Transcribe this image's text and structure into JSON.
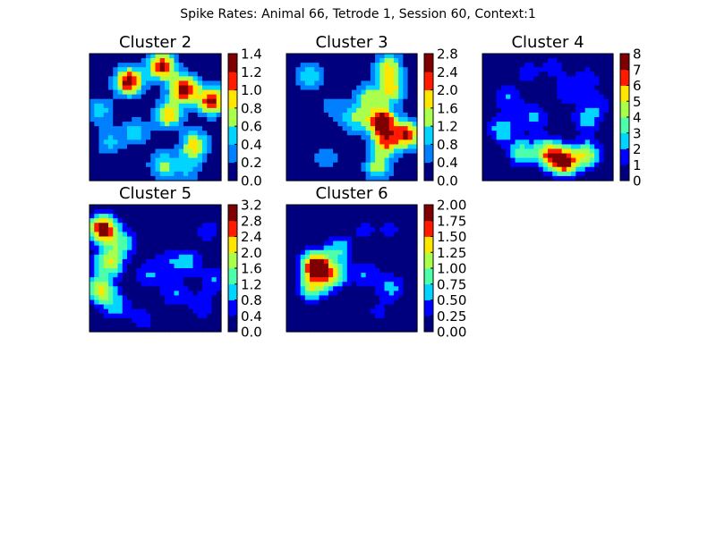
{
  "figure": {
    "suptitle": "Spike Rates: Animal 66, Tetrode 1, Session 60, Context:1"
  },
  "colormap": [
    "#00007f",
    "#0000ff",
    "#007fff",
    "#00d4ff",
    "#4dffaa",
    "#aaff4d",
    "#ffe600",
    "#ff7f00",
    "#ff1a00",
    "#7f0000"
  ],
  "chart_data": [
    {
      "type": "heatmap",
      "title": "Cluster 2",
      "colorbar": {
        "vmin": 0.0,
        "vmax": 1.4,
        "ticks": [
          "0.0",
          "0.2",
          "0.4",
          "0.6",
          "0.8",
          "1.0",
          "1.2",
          "1.4"
        ]
      },
      "hotspots": [
        {
          "x": 0.3,
          "y": 0.22,
          "rate": 1.35
        },
        {
          "x": 0.55,
          "y": 0.1,
          "rate": 1.25
        },
        {
          "x": 0.72,
          "y": 0.28,
          "rate": 1.3
        },
        {
          "x": 0.93,
          "y": 0.37,
          "rate": 1.25
        },
        {
          "x": 0.6,
          "y": 0.48,
          "rate": 0.95
        },
        {
          "x": 0.8,
          "y": 0.72,
          "rate": 0.9
        },
        {
          "x": 0.35,
          "y": 0.62,
          "rate": 0.5
        },
        {
          "x": 0.56,
          "y": 0.88,
          "rate": 0.65
        },
        {
          "x": 0.15,
          "y": 0.7,
          "rate": 0.45
        },
        {
          "x": 0.08,
          "y": 0.45,
          "rate": 0.5
        },
        {
          "x": 0.75,
          "y": 0.9,
          "rate": 0.45
        }
      ]
    },
    {
      "type": "heatmap",
      "title": "Cluster 3",
      "colorbar": {
        "vmin": 0.0,
        "vmax": 2.8,
        "ticks": [
          "0.0",
          "0.4",
          "0.8",
          "1.2",
          "1.6",
          "2.0",
          "2.4",
          "2.8"
        ]
      },
      "hotspots": [
        {
          "x": 0.73,
          "y": 0.53,
          "rate": 2.8
        },
        {
          "x": 0.92,
          "y": 0.64,
          "rate": 2.3
        },
        {
          "x": 0.75,
          "y": 0.7,
          "rate": 1.9
        },
        {
          "x": 0.8,
          "y": 0.28,
          "rate": 1.75
        },
        {
          "x": 0.78,
          "y": 0.1,
          "rate": 1.6
        },
        {
          "x": 0.62,
          "y": 0.35,
          "rate": 1.3
        },
        {
          "x": 0.18,
          "y": 0.18,
          "rate": 1.2
        },
        {
          "x": 0.52,
          "y": 0.52,
          "rate": 1.2
        },
        {
          "x": 0.7,
          "y": 0.9,
          "rate": 1.4
        },
        {
          "x": 0.35,
          "y": 0.42,
          "rate": 0.6
        },
        {
          "x": 0.3,
          "y": 0.82,
          "rate": 0.7
        }
      ]
    },
    {
      "type": "heatmap",
      "title": "Cluster 4",
      "colorbar": {
        "vmin": 0,
        "vmax": 8,
        "ticks": [
          "0",
          "1",
          "2",
          "3",
          "4",
          "5",
          "6",
          "7",
          "8"
        ]
      },
      "hotspots": [
        {
          "x": 0.62,
          "y": 0.85,
          "rate": 7.8
        },
        {
          "x": 0.5,
          "y": 0.78,
          "rate": 5.2
        },
        {
          "x": 0.8,
          "y": 0.8,
          "rate": 4.5
        },
        {
          "x": 0.3,
          "y": 0.78,
          "rate": 3.4
        },
        {
          "x": 0.15,
          "y": 0.6,
          "rate": 2.8
        },
        {
          "x": 0.8,
          "y": 0.52,
          "rate": 2.6
        },
        {
          "x": 0.4,
          "y": 0.5,
          "rate": 2.2
        },
        {
          "x": 0.2,
          "y": 0.35,
          "rate": 2.0
        },
        {
          "x": 0.65,
          "y": 0.3,
          "rate": 1.8
        },
        {
          "x": 0.8,
          "y": 0.2,
          "rate": 1.6
        },
        {
          "x": 0.35,
          "y": 0.15,
          "rate": 1.4
        },
        {
          "x": 0.55,
          "y": 0.1,
          "rate": 1.3
        },
        {
          "x": 0.9,
          "y": 0.4,
          "rate": 1.4
        }
      ]
    },
    {
      "type": "heatmap",
      "title": "Cluster 5",
      "colorbar": {
        "vmin": 0.0,
        "vmax": 3.2,
        "ticks": [
          "0.0",
          "0.4",
          "0.8",
          "1.2",
          "1.6",
          "2.0",
          "2.4",
          "2.8",
          "3.2"
        ]
      },
      "hotspots": [
        {
          "x": 0.1,
          "y": 0.19,
          "rate": 3.15
        },
        {
          "x": 0.15,
          "y": 0.45,
          "rate": 2.0
        },
        {
          "x": 0.08,
          "y": 0.67,
          "rate": 2.0
        },
        {
          "x": 0.25,
          "y": 0.3,
          "rate": 1.2
        },
        {
          "x": 0.2,
          "y": 0.8,
          "rate": 1.0
        },
        {
          "x": 0.45,
          "y": 0.55,
          "rate": 0.8
        },
        {
          "x": 0.6,
          "y": 0.45,
          "rate": 0.6
        },
        {
          "x": 0.75,
          "y": 0.45,
          "rate": 0.9
        },
        {
          "x": 0.65,
          "y": 0.7,
          "rate": 0.8
        },
        {
          "x": 0.85,
          "y": 0.8,
          "rate": 0.7
        },
        {
          "x": 0.95,
          "y": 0.6,
          "rate": 0.8
        },
        {
          "x": 0.9,
          "y": 0.2,
          "rate": 0.6
        },
        {
          "x": 0.4,
          "y": 0.9,
          "rate": 0.6
        }
      ]
    },
    {
      "type": "heatmap",
      "title": "Cluster 6",
      "colorbar": {
        "vmin": 0.0,
        "vmax": 2.0,
        "ticks": [
          "0.00",
          "0.25",
          "0.50",
          "0.75",
          "1.00",
          "1.25",
          "1.50",
          "1.75",
          "2.00"
        ]
      },
      "hotspots": [
        {
          "x": 0.22,
          "y": 0.48,
          "rate": 1.95
        },
        {
          "x": 0.35,
          "y": 0.55,
          "rate": 1.2
        },
        {
          "x": 0.2,
          "y": 0.65,
          "rate": 1.1
        },
        {
          "x": 0.4,
          "y": 0.35,
          "rate": 0.7
        },
        {
          "x": 0.6,
          "y": 0.55,
          "rate": 0.5
        },
        {
          "x": 0.8,
          "y": 0.65,
          "rate": 0.6
        },
        {
          "x": 0.6,
          "y": 0.2,
          "rate": 0.3
        },
        {
          "x": 0.8,
          "y": 0.2,
          "rate": 0.3
        },
        {
          "x": 0.7,
          "y": 0.85,
          "rate": 0.3
        }
      ]
    }
  ]
}
